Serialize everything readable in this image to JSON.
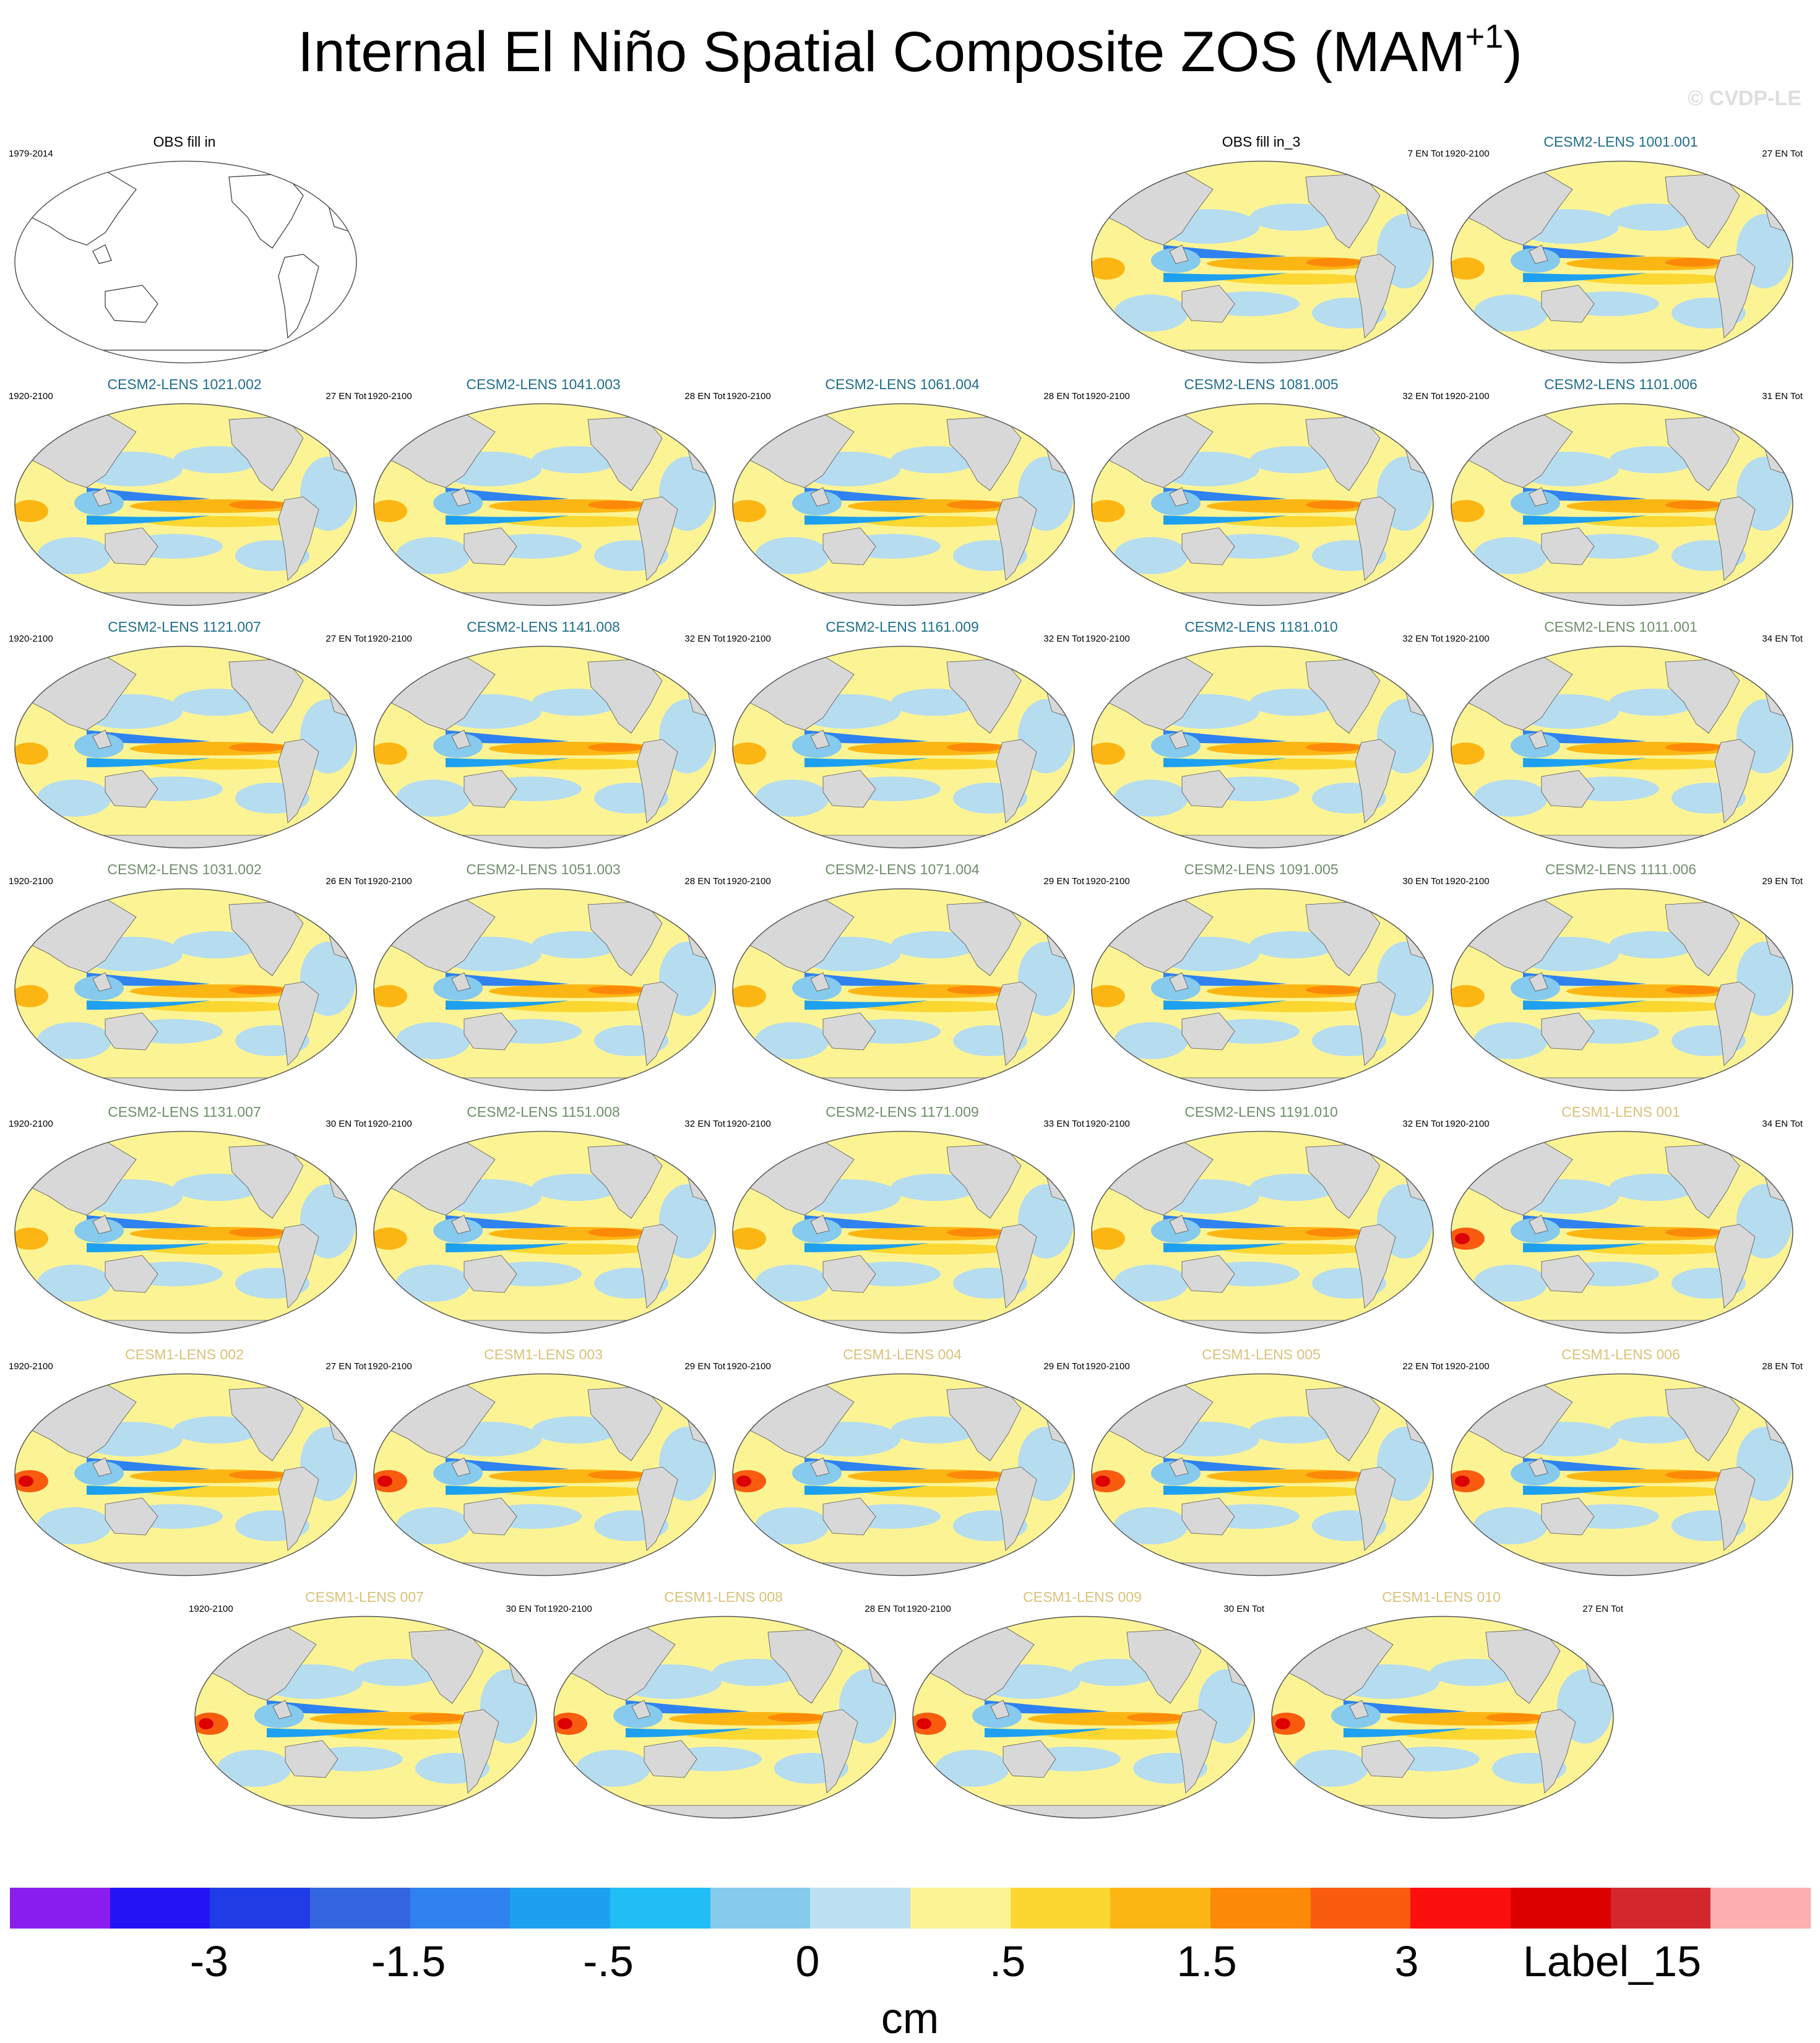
{
  "title_main": "Internal El Niño Spatial Composite ZOS (MAM",
  "title_sup": "+1",
  "title_close": ")",
  "watermark": "© CVDP-LE",
  "colors": {
    "ocean_warm": "#fcf494",
    "ocean_cool": "#b6dcf0",
    "land": "#d8d8d8",
    "cesm2_first_batch": "#1f6e8c",
    "cesm2_second_batch": "#6f8f6a",
    "cesm1": "#d9c27a"
  },
  "panels": [
    {
      "title": "OBS fill in",
      "left": "1979-2014",
      "right": "",
      "color": "#000000",
      "blank": true
    },
    {
      "title": "OBS fill in_3",
      "left": "",
      "right": "7 EN Tot",
      "color": "#000000"
    },
    {
      "title": "CESM2-LENS 1001.001",
      "left": "1920-2100",
      "right": "27 EN Tot",
      "color": "#1f6e8c"
    },
    {
      "title": "CESM2-LENS 1021.002",
      "left": "1920-2100",
      "right": "27 EN Tot",
      "color": "#1f6e8c"
    },
    {
      "title": "CESM2-LENS 1041.003",
      "left": "1920-2100",
      "right": "28 EN Tot",
      "color": "#1f6e8c"
    },
    {
      "title": "CESM2-LENS 1061.004",
      "left": "1920-2100",
      "right": "28 EN Tot",
      "color": "#1f6e8c"
    },
    {
      "title": "CESM2-LENS 1081.005",
      "left": "1920-2100",
      "right": "32 EN Tot",
      "color": "#1f6e8c"
    },
    {
      "title": "CESM2-LENS 1101.006",
      "left": "1920-2100",
      "right": "31 EN Tot",
      "color": "#1f6e8c"
    },
    {
      "title": "CESM2-LENS 1121.007",
      "left": "1920-2100",
      "right": "27 EN Tot",
      "color": "#1f6e8c"
    },
    {
      "title": "CESM2-LENS 1141.008",
      "left": "1920-2100",
      "right": "32 EN Tot",
      "color": "#1f6e8c"
    },
    {
      "title": "CESM2-LENS 1161.009",
      "left": "1920-2100",
      "right": "32 EN Tot",
      "color": "#1f6e8c"
    },
    {
      "title": "CESM2-LENS 1181.010",
      "left": "1920-2100",
      "right": "32 EN Tot",
      "color": "#1f6e8c"
    },
    {
      "title": "CESM2-LENS 1011.001",
      "left": "1920-2100",
      "right": "34 EN Tot",
      "color": "#6f8f6a"
    },
    {
      "title": "CESM2-LENS 1031.002",
      "left": "1920-2100",
      "right": "26 EN Tot",
      "color": "#6f8f6a"
    },
    {
      "title": "CESM2-LENS 1051.003",
      "left": "1920-2100",
      "right": "28 EN Tot",
      "color": "#6f8f6a"
    },
    {
      "title": "CESM2-LENS 1071.004",
      "left": "1920-2100",
      "right": "29 EN Tot",
      "color": "#6f8f6a"
    },
    {
      "title": "CESM2-LENS 1091.005",
      "left": "1920-2100",
      "right": "30 EN Tot",
      "color": "#6f8f6a"
    },
    {
      "title": "CESM2-LENS 1111.006",
      "left": "1920-2100",
      "right": "29 EN Tot",
      "color": "#6f8f6a"
    },
    {
      "title": "CESM2-LENS 1131.007",
      "left": "1920-2100",
      "right": "30 EN Tot",
      "color": "#6f8f6a"
    },
    {
      "title": "CESM2-LENS 1151.008",
      "left": "1920-2100",
      "right": "32 EN Tot",
      "color": "#6f8f6a"
    },
    {
      "title": "CESM2-LENS 1171.009",
      "left": "1920-2100",
      "right": "33 EN Tot",
      "color": "#6f8f6a"
    },
    {
      "title": "CESM2-LENS 1191.010",
      "left": "1920-2100",
      "right": "32 EN Tot",
      "color": "#6f8f6a"
    },
    {
      "title": "CESM1-LENS 001",
      "left": "1920-2100",
      "right": "34 EN Tot",
      "color": "#d9c27a"
    },
    {
      "title": "CESM1-LENS 002",
      "left": "1920-2100",
      "right": "27 EN Tot",
      "color": "#d9c27a"
    },
    {
      "title": "CESM1-LENS 003",
      "left": "1920-2100",
      "right": "29 EN Tot",
      "color": "#d9c27a"
    },
    {
      "title": "CESM1-LENS 004",
      "left": "1920-2100",
      "right": "29 EN Tot",
      "color": "#d9c27a"
    },
    {
      "title": "CESM1-LENS 005",
      "left": "1920-2100",
      "right": "22 EN Tot",
      "color": "#d9c27a"
    },
    {
      "title": "CESM1-LENS 006",
      "left": "1920-2100",
      "right": "28 EN Tot",
      "color": "#d9c27a"
    },
    {
      "title": "CESM1-LENS 007",
      "left": "1920-2100",
      "right": "30 EN Tot",
      "color": "#d9c27a"
    },
    {
      "title": "CESM1-LENS 008",
      "left": "1920-2100",
      "right": "28 EN Tot",
      "color": "#d9c27a"
    },
    {
      "title": "CESM1-LENS 009",
      "left": "1920-2100",
      "right": "30 EN Tot",
      "color": "#d9c27a"
    },
    {
      "title": "CESM1-LENS 010",
      "left": "",
      "right": "27 EN Tot",
      "color": "#d9c27a"
    }
  ],
  "colorbar": {
    "colors": [
      "#8a1ef0",
      "#2412f5",
      "#1f3ce6",
      "#3465e0",
      "#2f82f0",
      "#1ea0f0",
      "#20bef5",
      "#86caee",
      "#bce0f2",
      "#fcf494",
      "#fcd732",
      "#fcb614",
      "#fc8a08",
      "#f95b0f",
      "#fc0f0f",
      "#dc0000",
      "#d2282d",
      "#fcafaf"
    ],
    "tick_labels": [
      "-3",
      "-1.5",
      "-.5",
      "0",
      ".5",
      "1.5",
      "3",
      "Label_15"
    ],
    "unit": "cm"
  }
}
